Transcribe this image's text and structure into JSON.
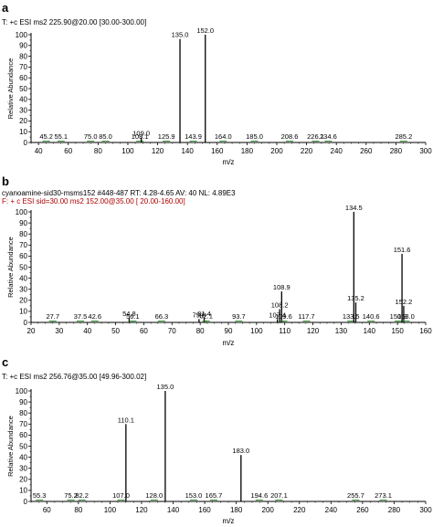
{
  "colors": {
    "axis": "#000000",
    "peak": "#000000",
    "minor_peak": "#2e8b2e",
    "header_red": "#b00000"
  },
  "chart_data": [
    {
      "type": "bar",
      "panel_label": "a",
      "header_lines": [
        "T: +c ESI ms2 225.90@20.00 [30.00-300.00]"
      ],
      "xlabel": "m/z",
      "ylabel": "Relative Abundance",
      "xlim": [
        35,
        300
      ],
      "ylim": [
        0,
        100
      ],
      "x_ticks": [
        40,
        60,
        80,
        100,
        120,
        140,
        160,
        180,
        200,
        220,
        240,
        260,
        280,
        300
      ],
      "y_ticks": [
        0,
        10,
        20,
        30,
        40,
        50,
        60,
        70,
        80,
        90,
        100
      ],
      "peaks": [
        {
          "mz": 45.2,
          "value": 0.5,
          "label": "45.2"
        },
        {
          "mz": 55.1,
          "value": 0.5,
          "label": "55.1"
        },
        {
          "mz": 75.0,
          "value": 0.5,
          "label": "75.0"
        },
        {
          "mz": 85.0,
          "value": 0.5,
          "label": "85.0"
        },
        {
          "mz": 108.1,
          "value": 0.6,
          "label": "108.1"
        },
        {
          "mz": 109.0,
          "value": 4.5,
          "label": "109.0"
        },
        {
          "mz": 125.9,
          "value": 0.6,
          "label": "125.9"
        },
        {
          "mz": 135.0,
          "value": 96,
          "label": "135.0"
        },
        {
          "mz": 143.9,
          "value": 0.5,
          "label": "143.9"
        },
        {
          "mz": 152.0,
          "value": 100,
          "label": "152.0"
        },
        {
          "mz": 164.0,
          "value": 0.5,
          "label": "164.0"
        },
        {
          "mz": 185.0,
          "value": 0.5,
          "label": "185.0"
        },
        {
          "mz": 208.6,
          "value": 0.5,
          "label": "208.6"
        },
        {
          "mz": 226.1,
          "value": 0.8,
          "label": "226.1"
        },
        {
          "mz": 234.6,
          "value": 0.5,
          "label": "234.6"
        },
        {
          "mz": 285.2,
          "value": 0.5,
          "label": "285.2"
        }
      ]
    },
    {
      "type": "bar",
      "panel_label": "b",
      "header_lines": [
        "cyanoamine-sid30-msms152 #448-487   RT: 4.28-4.65   AV: 40   NL: 4.89E3",
        "F: + c ESI sid=30.00  ms2 152.00@35.00 [ 20.00-160.00]"
      ],
      "xlabel": "m/z",
      "ylabel": "Relative Abundance",
      "xlim": [
        20,
        160
      ],
      "ylim": [
        0,
        100
      ],
      "x_ticks": [
        20,
        30,
        40,
        50,
        60,
        70,
        80,
        90,
        100,
        110,
        120,
        130,
        140,
        150,
        160
      ],
      "y_ticks": [
        0,
        10,
        20,
        30,
        40,
        50,
        60,
        70,
        80,
        90,
        100
      ],
      "peaks": [
        {
          "mz": 27.7,
          "value": 1,
          "label": "27.7"
        },
        {
          "mz": 37.5,
          "value": 0.5,
          "label": "37.5"
        },
        {
          "mz": 42.6,
          "value": 0.5,
          "label": "42.6"
        },
        {
          "mz": 54.8,
          "value": 4,
          "label": "54.8"
        },
        {
          "mz": 56.1,
          "value": 1,
          "label": "56.1"
        },
        {
          "mz": 66.3,
          "value": 0.5,
          "label": "66.3"
        },
        {
          "mz": 79.6,
          "value": 3,
          "label": "79.6"
        },
        {
          "mz": 81.4,
          "value": 4,
          "label": "81.4"
        },
        {
          "mz": 82.1,
          "value": 2,
          "label": "82.1"
        },
        {
          "mz": 93.7,
          "value": 0.5,
          "label": "93.7"
        },
        {
          "mz": 107.4,
          "value": 3,
          "label": "107.4"
        },
        {
          "mz": 108.2,
          "value": 12,
          "label": "108.2"
        },
        {
          "mz": 108.9,
          "value": 28,
          "label": "108.9"
        },
        {
          "mz": 109.6,
          "value": 1,
          "label": "109.6"
        },
        {
          "mz": 117.7,
          "value": 0.5,
          "label": "117.7"
        },
        {
          "mz": 133.5,
          "value": 1,
          "label": "133.5"
        },
        {
          "mz": 134.5,
          "value": 100,
          "label": "134.5"
        },
        {
          "mz": 135.2,
          "value": 18,
          "label": "135.2"
        },
        {
          "mz": 140.6,
          "value": 0.5,
          "label": "140.6"
        },
        {
          "mz": 150.3,
          "value": 1,
          "label": "150.3"
        },
        {
          "mz": 151.6,
          "value": 62,
          "label": "151.6"
        },
        {
          "mz": 152.2,
          "value": 15,
          "label": "152.2"
        },
        {
          "mz": 153.0,
          "value": 0.5,
          "label": "153.0"
        }
      ]
    },
    {
      "type": "bar",
      "panel_label": "c",
      "header_lines": [
        "T: +c ESI ms2 256.76@35.00 [49.96-300.02]"
      ],
      "xlabel": "m/z",
      "ylabel": "Relative Abundance",
      "xlim": [
        50,
        300
      ],
      "ylim": [
        0,
        100
      ],
      "x_ticks": [
        60,
        80,
        100,
        120,
        140,
        160,
        180,
        200,
        220,
        240,
        260,
        280,
        300
      ],
      "y_ticks": [
        0,
        10,
        20,
        30,
        40,
        50,
        60,
        70,
        80,
        90,
        100
      ],
      "peaks": [
        {
          "mz": 55.3,
          "value": 0.5,
          "label": "55.3"
        },
        {
          "mz": 75.2,
          "value": 0.5,
          "label": "75.2"
        },
        {
          "mz": 82.2,
          "value": 0.5,
          "label": "82.2"
        },
        {
          "mz": 107.0,
          "value": 0.5,
          "label": "107.0"
        },
        {
          "mz": 110.1,
          "value": 70,
          "label": "110.1"
        },
        {
          "mz": 128.0,
          "value": 0.5,
          "label": "128.0"
        },
        {
          "mz": 135.0,
          "value": 100,
          "label": "135.0"
        },
        {
          "mz": 153.0,
          "value": 0.5,
          "label": "153.0"
        },
        {
          "mz": 165.7,
          "value": 0.5,
          "label": "165.7"
        },
        {
          "mz": 183.0,
          "value": 42,
          "label": "183.0"
        },
        {
          "mz": 194.6,
          "value": 0.5,
          "label": "194.6"
        },
        {
          "mz": 207.1,
          "value": 0.5,
          "label": "207.1"
        },
        {
          "mz": 255.7,
          "value": 0.5,
          "label": "255.7"
        },
        {
          "mz": 273.1,
          "value": 0.5,
          "label": "273.1"
        }
      ]
    }
  ]
}
